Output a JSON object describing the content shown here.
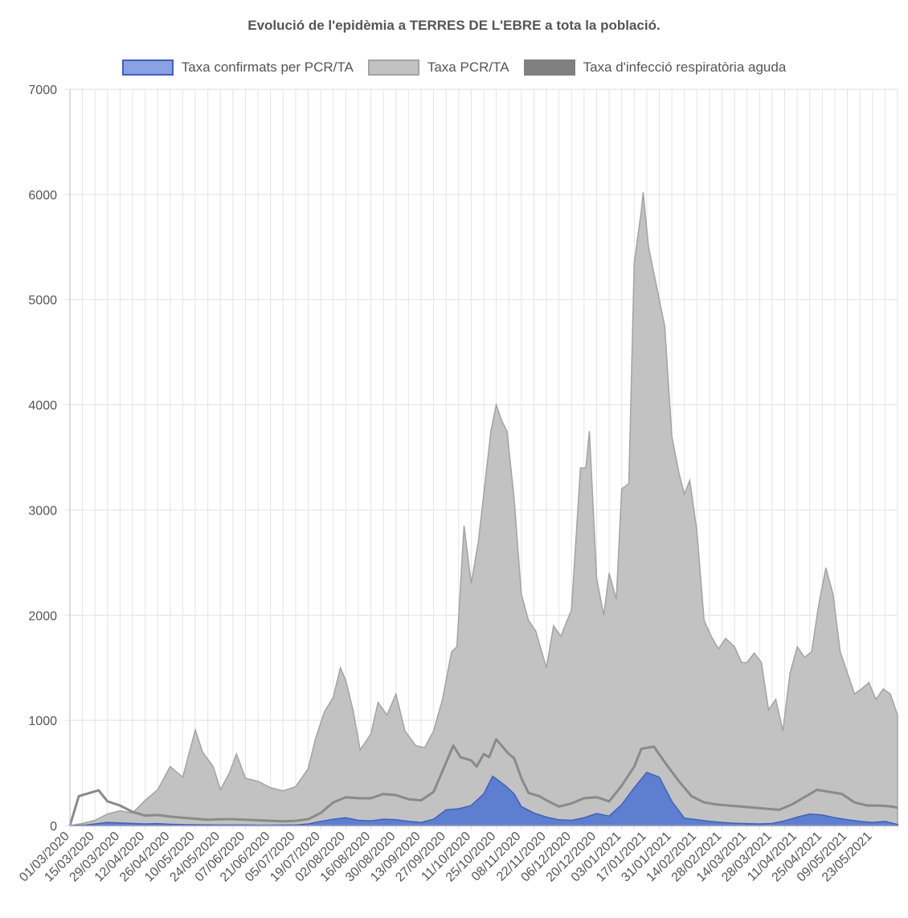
{
  "chart_data": {
    "type": "area",
    "title": "Evolució de l'epidèmia a TERRES DE L'EBRE a tota la població.",
    "ylim": [
      0,
      7000
    ],
    "yticks": [
      0,
      1000,
      2000,
      3000,
      4000,
      5000,
      6000,
      7000
    ],
    "grid": true,
    "legend_position": "top",
    "x_tick_labels": [
      "01/03/2020",
      "15/03/2020",
      "29/03/2020",
      "12/04/2020",
      "26/04/2020",
      "10/05/2020",
      "24/05/2020",
      "07/06/2020",
      "21/06/2020",
      "05/07/2020",
      "19/07/2020",
      "02/08/2020",
      "16/08/2020",
      "30/08/2020",
      "13/09/2020",
      "27/09/2020",
      "11/10/2020",
      "25/10/2020",
      "08/11/2020",
      "22/11/2020",
      "06/12/2020",
      "20/12/2020",
      "03/01/2021",
      "17/01/2021",
      "31/01/2021",
      "14/02/2021",
      "28/02/2021",
      "14/03/2021",
      "28/03/2021",
      "11/04/2021",
      "25/04/2021",
      "09/05/2021",
      "23/05/2021"
    ],
    "x_range": [
      "01/03/2020",
      "06/06/2021"
    ],
    "series": [
      {
        "name": "Taxa confirmats per PCR/TA",
        "color": "#5b7fd6",
        "fill": "#5e7fcf",
        "stroke": "#3f5fbf",
        "style": "area",
        "points": [
          [
            "01/03/2020",
            0
          ],
          [
            "10/03/2020",
            5
          ],
          [
            "15/03/2020",
            15
          ],
          [
            "22/03/2020",
            30
          ],
          [
            "29/03/2020",
            25
          ],
          [
            "05/04/2020",
            20
          ],
          [
            "12/04/2020",
            15
          ],
          [
            "19/04/2020",
            18
          ],
          [
            "26/04/2020",
            12
          ],
          [
            "03/05/2020",
            10
          ],
          [
            "10/05/2020",
            8
          ],
          [
            "17/05/2020",
            7
          ],
          [
            "24/05/2020",
            6
          ],
          [
            "31/05/2020",
            5
          ],
          [
            "07/06/2020",
            5
          ],
          [
            "14/06/2020",
            4
          ],
          [
            "21/06/2020",
            4
          ],
          [
            "28/06/2020",
            5
          ],
          [
            "05/07/2020",
            6
          ],
          [
            "12/07/2020",
            15
          ],
          [
            "19/07/2020",
            40
          ],
          [
            "26/07/2020",
            60
          ],
          [
            "02/08/2020",
            75
          ],
          [
            "09/08/2020",
            50
          ],
          [
            "16/08/2020",
            45
          ],
          [
            "23/08/2020",
            60
          ],
          [
            "30/08/2020",
            55
          ],
          [
            "06/09/2020",
            40
          ],
          [
            "13/09/2020",
            30
          ],
          [
            "20/09/2020",
            60
          ],
          [
            "27/09/2020",
            150
          ],
          [
            "04/10/2020",
            160
          ],
          [
            "11/10/2020",
            190
          ],
          [
            "18/10/2020",
            300
          ],
          [
            "23/10/2020",
            470
          ],
          [
            "30/10/2020",
            380
          ],
          [
            "04/11/2020",
            300
          ],
          [
            "08/11/2020",
            180
          ],
          [
            "15/11/2020",
            120
          ],
          [
            "22/11/2020",
            80
          ],
          [
            "29/11/2020",
            55
          ],
          [
            "06/12/2020",
            50
          ],
          [
            "13/12/2020",
            75
          ],
          [
            "20/12/2020",
            115
          ],
          [
            "27/12/2020",
            90
          ],
          [
            "03/01/2021",
            200
          ],
          [
            "10/01/2021",
            360
          ],
          [
            "17/01/2021",
            505
          ],
          [
            "24/01/2021",
            460
          ],
          [
            "31/01/2021",
            230
          ],
          [
            "07/02/2021",
            70
          ],
          [
            "14/02/2021",
            55
          ],
          [
            "21/02/2021",
            40
          ],
          [
            "28/02/2021",
            30
          ],
          [
            "07/03/2021",
            22
          ],
          [
            "14/03/2021",
            18
          ],
          [
            "21/03/2021",
            15
          ],
          [
            "28/03/2021",
            20
          ],
          [
            "04/04/2021",
            45
          ],
          [
            "11/04/2021",
            80
          ],
          [
            "18/04/2021",
            110
          ],
          [
            "25/04/2021",
            100
          ],
          [
            "02/05/2021",
            75
          ],
          [
            "09/05/2021",
            55
          ],
          [
            "16/05/2021",
            40
          ],
          [
            "23/05/2021",
            30
          ],
          [
            "30/05/2021",
            40
          ],
          [
            "06/06/2021",
            10
          ]
        ]
      },
      {
        "name": "Taxa PCR/TA",
        "color": "#bdbdbd",
        "fill": "#c2c2c2",
        "stroke": "#a3a3a3",
        "style": "area",
        "points": [
          [
            "01/03/2020",
            0
          ],
          [
            "08/03/2020",
            20
          ],
          [
            "15/03/2020",
            50
          ],
          [
            "22/03/2020",
            110
          ],
          [
            "29/03/2020",
            140
          ],
          [
            "05/04/2020",
            120
          ],
          [
            "12/04/2020",
            240
          ],
          [
            "19/04/2020",
            340
          ],
          [
            "26/04/2020",
            560
          ],
          [
            "03/05/2020",
            460
          ],
          [
            "07/05/2020",
            720
          ],
          [
            "10/05/2020",
            910
          ],
          [
            "14/05/2020",
            700
          ],
          [
            "20/05/2020",
            560
          ],
          [
            "24/05/2020",
            340
          ],
          [
            "29/05/2020",
            500
          ],
          [
            "02/06/2020",
            680
          ],
          [
            "07/06/2020",
            450
          ],
          [
            "14/06/2020",
            420
          ],
          [
            "21/06/2020",
            360
          ],
          [
            "28/06/2020",
            330
          ],
          [
            "05/07/2020",
            370
          ],
          [
            "12/07/2020",
            540
          ],
          [
            "16/07/2020",
            820
          ],
          [
            "21/07/2020",
            1080
          ],
          [
            "26/07/2020",
            1220
          ],
          [
            "30/07/2020",
            1500
          ],
          [
            "02/08/2020",
            1380
          ],
          [
            "06/08/2020",
            1100
          ],
          [
            "10/08/2020",
            720
          ],
          [
            "16/08/2020",
            870
          ],
          [
            "20/08/2020",
            1170
          ],
          [
            "25/08/2020",
            1050
          ],
          [
            "30/08/2020",
            1250
          ],
          [
            "04/09/2020",
            900
          ],
          [
            "10/09/2020",
            760
          ],
          [
            "15/09/2020",
            740
          ],
          [
            "20/09/2020",
            900
          ],
          [
            "25/09/2020",
            1200
          ],
          [
            "30/09/2020",
            1650
          ],
          [
            "03/10/2020",
            1700
          ],
          [
            "07/10/2020",
            2850
          ],
          [
            "11/10/2020",
            2300
          ],
          [
            "15/10/2020",
            2700
          ],
          [
            "18/10/2020",
            3150
          ],
          [
            "22/10/2020",
            3750
          ],
          [
            "25/10/2020",
            4000
          ],
          [
            "28/10/2020",
            3850
          ],
          [
            "31/10/2020",
            3750
          ],
          [
            "04/11/2020",
            3100
          ],
          [
            "08/11/2020",
            2200
          ],
          [
            "12/11/2020",
            1950
          ],
          [
            "16/11/2020",
            1850
          ],
          [
            "22/11/2020",
            1500
          ],
          [
            "26/11/2020",
            1900
          ],
          [
            "30/11/2020",
            1800
          ],
          [
            "06/12/2020",
            2050
          ],
          [
            "11/12/2020",
            3400
          ],
          [
            "14/12/2020",
            3400
          ],
          [
            "16/12/2020",
            3750
          ],
          [
            "20/12/2020",
            2350
          ],
          [
            "24/12/2020",
            2000
          ],
          [
            "27/12/2020",
            2400
          ],
          [
            "31/12/2020",
            2150
          ],
          [
            "03/01/2021",
            3200
          ],
          [
            "07/01/2021",
            3250
          ],
          [
            "10/01/2021",
            5350
          ],
          [
            "14/01/2021",
            5850
          ],
          [
            "15/01/2021",
            6020
          ],
          [
            "18/01/2021",
            5500
          ],
          [
            "21/01/2021",
            5250
          ],
          [
            "24/01/2021",
            5000
          ],
          [
            "27/01/2021",
            4750
          ],
          [
            "31/01/2021",
            3700
          ],
          [
            "04/02/2021",
            3350
          ],
          [
            "07/02/2021",
            3150
          ],
          [
            "10/02/2021",
            3280
          ],
          [
            "14/02/2021",
            2800
          ],
          [
            "18/02/2021",
            1950
          ],
          [
            "22/02/2021",
            1800
          ],
          [
            "26/02/2021",
            1680
          ],
          [
            "02/03/2021",
            1780
          ],
          [
            "07/03/2021",
            1700
          ],
          [
            "11/03/2021",
            1550
          ],
          [
            "14/03/2021",
            1550
          ],
          [
            "18/03/2021",
            1640
          ],
          [
            "22/03/2021",
            1550
          ],
          [
            "26/03/2021",
            1100
          ],
          [
            "30/03/2021",
            1200
          ],
          [
            "03/04/2021",
            900
          ],
          [
            "07/04/2021",
            1450
          ],
          [
            "11/04/2021",
            1700
          ],
          [
            "15/04/2021",
            1600
          ],
          [
            "19/04/2021",
            1650
          ],
          [
            "23/04/2021",
            2100
          ],
          [
            "27/04/2021",
            2450
          ],
          [
            "01/05/2021",
            2200
          ],
          [
            "05/05/2021",
            1650
          ],
          [
            "09/05/2021",
            1450
          ],
          [
            "13/05/2021",
            1250
          ],
          [
            "17/05/2021",
            1300
          ],
          [
            "21/05/2021",
            1360
          ],
          [
            "25/05/2021",
            1200
          ],
          [
            "29/05/2021",
            1300
          ],
          [
            "02/06/2021",
            1250
          ],
          [
            "06/06/2021",
            1050
          ]
        ]
      },
      {
        "name": "Taxa d'infecció respiratòria aguda",
        "color": "#808080",
        "fill": "none",
        "stroke": "#8a8a8a",
        "style": "line",
        "points": [
          [
            "01/03/2020",
            0
          ],
          [
            "06/03/2020",
            280
          ],
          [
            "12/03/2020",
            310
          ],
          [
            "17/03/2020",
            335
          ],
          [
            "22/03/2020",
            230
          ],
          [
            "29/03/2020",
            190
          ],
          [
            "05/04/2020",
            130
          ],
          [
            "12/04/2020",
            95
          ],
          [
            "19/04/2020",
            100
          ],
          [
            "26/04/2020",
            85
          ],
          [
            "03/05/2020",
            75
          ],
          [
            "10/05/2020",
            65
          ],
          [
            "17/05/2020",
            55
          ],
          [
            "24/05/2020",
            60
          ],
          [
            "31/05/2020",
            60
          ],
          [
            "07/06/2020",
            55
          ],
          [
            "14/06/2020",
            50
          ],
          [
            "21/06/2020",
            45
          ],
          [
            "28/06/2020",
            40
          ],
          [
            "05/07/2020",
            45
          ],
          [
            "12/07/2020",
            60
          ],
          [
            "19/07/2020",
            120
          ],
          [
            "26/07/2020",
            220
          ],
          [
            "02/08/2020",
            270
          ],
          [
            "09/08/2020",
            260
          ],
          [
            "16/08/2020",
            260
          ],
          [
            "23/08/2020",
            300
          ],
          [
            "30/08/2020",
            290
          ],
          [
            "06/09/2020",
            250
          ],
          [
            "13/09/2020",
            240
          ],
          [
            "20/09/2020",
            320
          ],
          [
            "27/09/2020",
            600
          ],
          [
            "01/10/2020",
            760
          ],
          [
            "05/10/2020",
            650
          ],
          [
            "11/10/2020",
            620
          ],
          [
            "14/10/2020",
            560
          ],
          [
            "18/10/2020",
            680
          ],
          [
            "21/10/2020",
            650
          ],
          [
            "25/10/2020",
            820
          ],
          [
            "28/10/2020",
            760
          ],
          [
            "01/11/2020",
            680
          ],
          [
            "04/11/2020",
            640
          ],
          [
            "08/11/2020",
            450
          ],
          [
            "12/11/2020",
            310
          ],
          [
            "18/11/2020",
            280
          ],
          [
            "22/11/2020",
            240
          ],
          [
            "29/11/2020",
            180
          ],
          [
            "06/12/2020",
            210
          ],
          [
            "13/12/2020",
            260
          ],
          [
            "20/12/2020",
            270
          ],
          [
            "27/12/2020",
            230
          ],
          [
            "03/01/2021",
            380
          ],
          [
            "10/01/2021",
            560
          ],
          [
            "14/01/2021",
            730
          ],
          [
            "21/01/2021",
            750
          ],
          [
            "28/01/2021",
            580
          ],
          [
            "04/02/2021",
            420
          ],
          [
            "11/02/2021",
            280
          ],
          [
            "18/02/2021",
            220
          ],
          [
            "25/02/2021",
            200
          ],
          [
            "04/03/2021",
            190
          ],
          [
            "11/03/2021",
            180
          ],
          [
            "18/03/2021",
            170
          ],
          [
            "25/03/2021",
            160
          ],
          [
            "01/04/2021",
            150
          ],
          [
            "08/04/2021",
            200
          ],
          [
            "15/04/2021",
            270
          ],
          [
            "22/04/2021",
            340
          ],
          [
            "29/04/2021",
            320
          ],
          [
            "06/05/2021",
            300
          ],
          [
            "13/05/2021",
            220
          ],
          [
            "20/05/2021",
            190
          ],
          [
            "27/05/2021",
            190
          ],
          [
            "03/06/2021",
            180
          ],
          [
            "06/06/2021",
            170
          ]
        ]
      }
    ]
  }
}
